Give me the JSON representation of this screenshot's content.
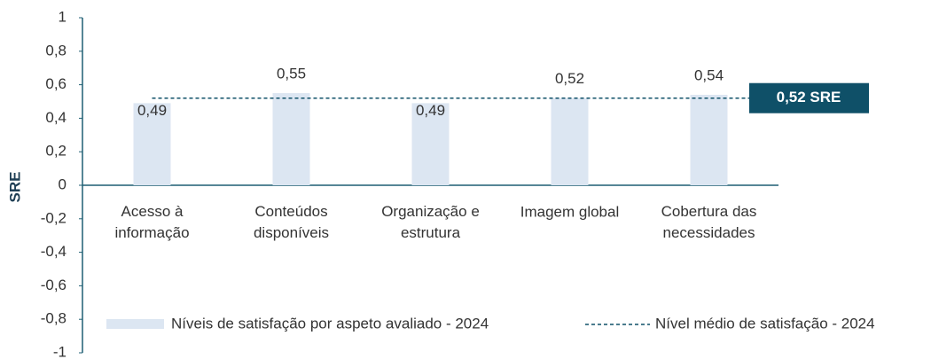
{
  "chart_data": {
    "type": "bar",
    "y_label": "SRE",
    "categories": [
      "Acesso à\ninformação",
      "Conteúdos\ndisponíveis",
      "Organização e\nestrutura",
      "Imagem global",
      "Cobertura das\nnecessidades"
    ],
    "series": [
      {
        "name": "Níveis de satisfação por aspeto avaliado - 2024",
        "color": "#dce6f2",
        "values": [
          0.49,
          0.55,
          0.49,
          0.52,
          0.54
        ],
        "value_labels": [
          "0,49",
          "0,55",
          "0,49",
          "0,52",
          "0,54"
        ]
      }
    ],
    "reference_line": {
      "name": "Nível médio de satisfação - 2024",
      "value": 0.52,
      "label": "0,52 SRE",
      "color": "#0f5068"
    },
    "ylim": [
      -1,
      1
    ],
    "yticks": [
      {
        "value": -1,
        "label": "-1"
      },
      {
        "value": -0.8,
        "label": "-0,8"
      },
      {
        "value": -0.6,
        "label": "-0,6"
      },
      {
        "value": -0.4,
        "label": "-0,4"
      },
      {
        "value": -0.2,
        "label": "-0,2"
      },
      0,
      {
        "value": 0.2,
        "label": "0,2"
      },
      {
        "value": 0.4,
        "label": "0,4"
      },
      {
        "value": 0.6,
        "label": "0,6"
      },
      {
        "value": 0.8,
        "label": "0,8"
      },
      1
    ],
    "axis_color": "#1f5f73",
    "grid": false
  }
}
